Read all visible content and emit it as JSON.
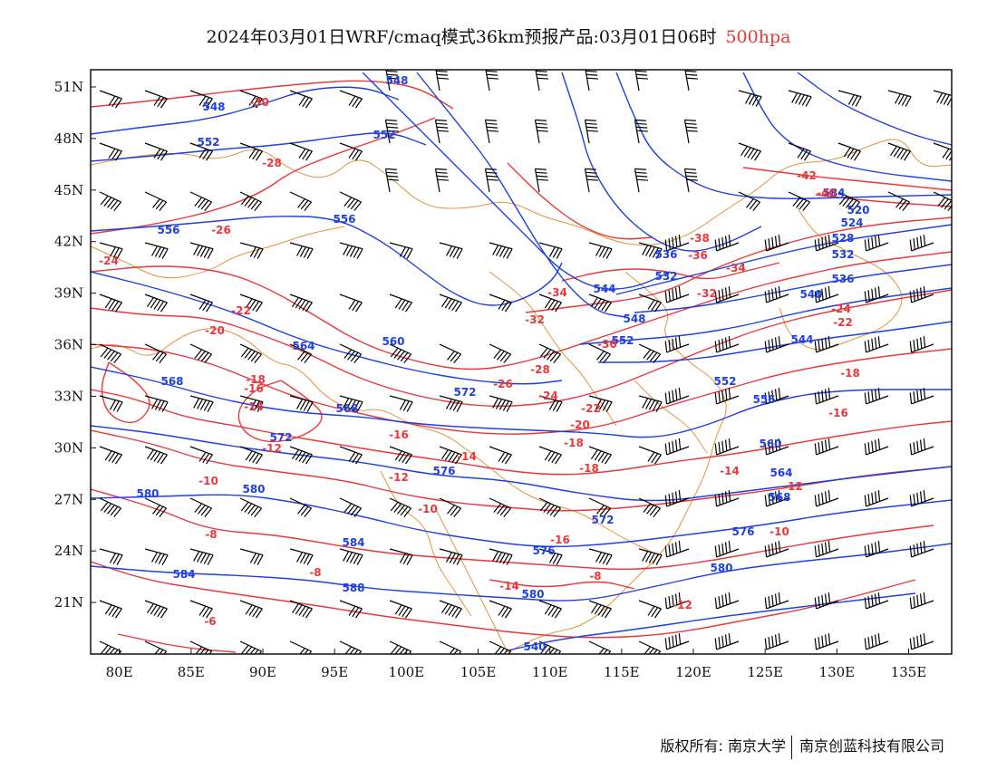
{
  "title": {
    "text": "2024年03月01日WRF/cmaq模式36km预报产品:03月01日06时",
    "level": "500hpa"
  },
  "colors": {
    "height_contour": "#1f3fe0",
    "temp_contour": "#e8383b",
    "border": "#e0953a",
    "wind_barb": "#000000"
  },
  "axes": {
    "x_ticks": [
      "80E",
      "85E",
      "90E",
      "95E",
      "100E",
      "105E",
      "110E",
      "115E",
      "120E",
      "125E",
      "130E",
      "135E"
    ],
    "y_ticks": [
      "51N",
      "48N",
      "45N",
      "42N",
      "39N",
      "36N",
      "33N",
      "30N",
      "27N",
      "24N",
      "21N"
    ],
    "lon_range": [
      78,
      138
    ],
    "lat_range": [
      18,
      52
    ]
  },
  "contours": {
    "height_labels": [
      "548",
      "548",
      "552",
      "552",
      "556",
      "556",
      "560",
      "564",
      "568",
      "568",
      "572",
      "572",
      "576",
      "580",
      "580",
      "584",
      "584",
      "588",
      "540",
      "544",
      "548",
      "552",
      "536",
      "532",
      "536",
      "540",
      "544",
      "552",
      "556",
      "560",
      "564",
      "568",
      "572",
      "576",
      "576",
      "580",
      "580",
      "584",
      "520",
      "524",
      "528",
      "532",
      "536"
    ],
    "temp_labels": [
      "-30",
      "-28",
      "-26",
      "-24",
      "-22",
      "-20",
      "-18",
      "-16",
      "-14",
      "-12",
      "-10",
      "-8",
      "-6",
      "-8",
      "-10",
      "-12",
      "-14",
      "-16",
      "-18",
      "-20",
      "-22",
      "-24",
      "-26",
      "-28",
      "-30",
      "-32",
      "-34",
      "-32",
      "-34",
      "-36",
      "-38",
      "-40",
      "-42",
      "-24",
      "-22",
      "-18",
      "-16",
      "-14",
      "-12",
      "-10",
      "-8",
      "-12",
      "-14",
      "-16",
      "-18"
    ]
  },
  "footer": {
    "left": "版权所有: 南京大学",
    "right": "南京创蓝科技有限公司"
  }
}
